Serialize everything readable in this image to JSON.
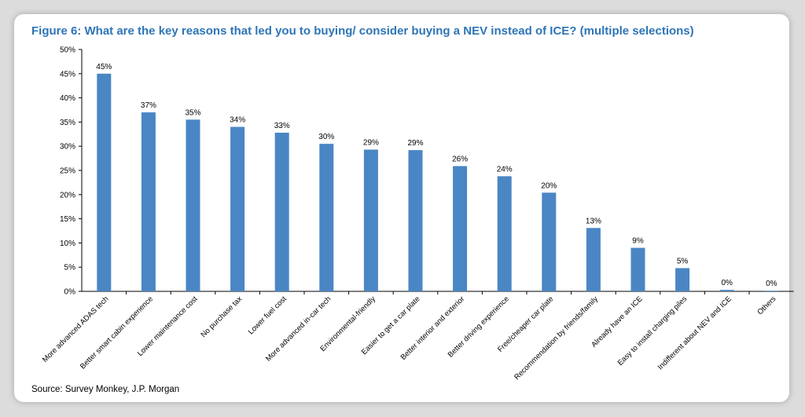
{
  "chart_data": {
    "type": "bar",
    "title": "Figure 6: What are the key reasons that led you to buying/ consider buying a NEV instead of ICE? (multiple selections)",
    "source": "Source: Survey Monkey, J.P. Morgan",
    "categories": [
      "More advanced ADAS tech",
      "Better smart cabin experience",
      "Lower maintenance cost",
      "No purchase tax",
      "Lower fuel cost",
      "More advanced in-car tech",
      "Environmental-friendly",
      "Easier to get a car plate",
      "Better interior and exterior",
      "Better driving experience",
      "Free/cheaper car plate",
      "Recommendation by friends/family",
      "Already have an ICE",
      "Easy to install charging piles",
      "Indifferent about NEV and ICE",
      "Others"
    ],
    "values": [
      45,
      37,
      35.5,
      34,
      32.8,
      30.5,
      29.3,
      29.2,
      25.9,
      23.8,
      20.4,
      13.1,
      9,
      4.8,
      0.3,
      0
    ],
    "data_labels": [
      "45%",
      "37%",
      "35%",
      "34%",
      "33%",
      "30%",
      "29%",
      "29%",
      "26%",
      "24%",
      "20%",
      "13%",
      "9%",
      "5%",
      "0%",
      "0%"
    ],
    "yticks": [
      "0%",
      "5%",
      "10%",
      "15%",
      "20%",
      "25%",
      "30%",
      "35%",
      "40%",
      "45%",
      "50%"
    ],
    "ylim": [
      0,
      50
    ],
    "xlabel": "",
    "ylabel": "",
    "grid": false,
    "bar_color": "#4a86c4",
    "title_color": "#2e75b6"
  }
}
